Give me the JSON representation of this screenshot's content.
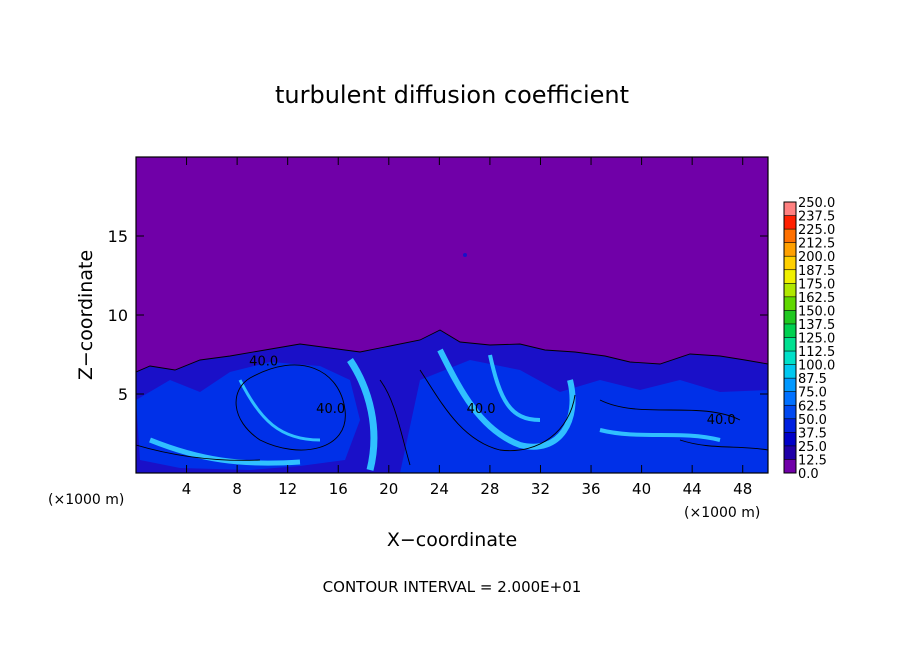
{
  "chart_data": {
    "type": "contour",
    "title": "turbulent diffusion coefficient",
    "xlabel": "X−coordinate",
    "ylabel": "Z−coordinate",
    "x_unit_label": "(×1000 m)",
    "footer": "CONTOUR INTERVAL = 2.000E+01",
    "xlim": [
      0,
      50
    ],
    "ylim": [
      0,
      20
    ],
    "xticks": [
      4,
      8,
      12,
      16,
      20,
      24,
      28,
      32,
      36,
      40,
      44,
      48
    ],
    "yticks": [
      5,
      10,
      15
    ],
    "contour_labels": [
      {
        "value": 40,
        "label": "40.0",
        "x": 10.1,
        "z": 6.8
      },
      {
        "value": 40,
        "label": "40.0",
        "x": 15.4,
        "z": 3.8
      },
      {
        "value": 40,
        "label": "40.0",
        "x": 27.3,
        "z": 3.8
      },
      {
        "value": 40,
        "label": "40.0",
        "x": 46.3,
        "z": 3.1
      }
    ],
    "colorbar": {
      "levels": [
        {
          "value": 0,
          "label": "0.0"
        },
        {
          "value": 12.5,
          "label": "12.5"
        },
        {
          "value": 25,
          "label": "25.0"
        },
        {
          "value": 37.5,
          "label": "37.5"
        },
        {
          "value": 50,
          "label": "50.0"
        },
        {
          "value": 62.5,
          "label": "62.5"
        },
        {
          "value": 75,
          "label": "75.0"
        },
        {
          "value": 87.5,
          "label": "87.5"
        },
        {
          "value": 100,
          "label": "100.0"
        },
        {
          "value": 112.5,
          "label": "112.5"
        },
        {
          "value": 125,
          "label": "125.0"
        },
        {
          "value": 137.5,
          "label": "137.5"
        },
        {
          "value": 150,
          "label": "150.0"
        },
        {
          "value": 162.5,
          "label": "162.5"
        },
        {
          "value": 175,
          "label": "175.0"
        },
        {
          "value": 187.5,
          "label": "187.5"
        },
        {
          "value": 200,
          "label": "200.0"
        },
        {
          "value": 212.5,
          "label": "212.5"
        },
        {
          "value": 225,
          "label": "225.0"
        },
        {
          "value": 237.5,
          "label": "237.5"
        },
        {
          "value": 250,
          "label": "250.0"
        }
      ],
      "colors": [
        "#7000a8",
        "#2000a8",
        "#0000c8",
        "#0020e0",
        "#0048f0",
        "#0070ff",
        "#0098ff",
        "#00c8f0",
        "#00e0c8",
        "#00e090",
        "#00d050",
        "#20c820",
        "#60d800",
        "#b0e800",
        "#f0f000",
        "#ffd000",
        "#ffa000",
        "#ff7000",
        "#ff2000",
        "#ff8080"
      ]
    }
  }
}
